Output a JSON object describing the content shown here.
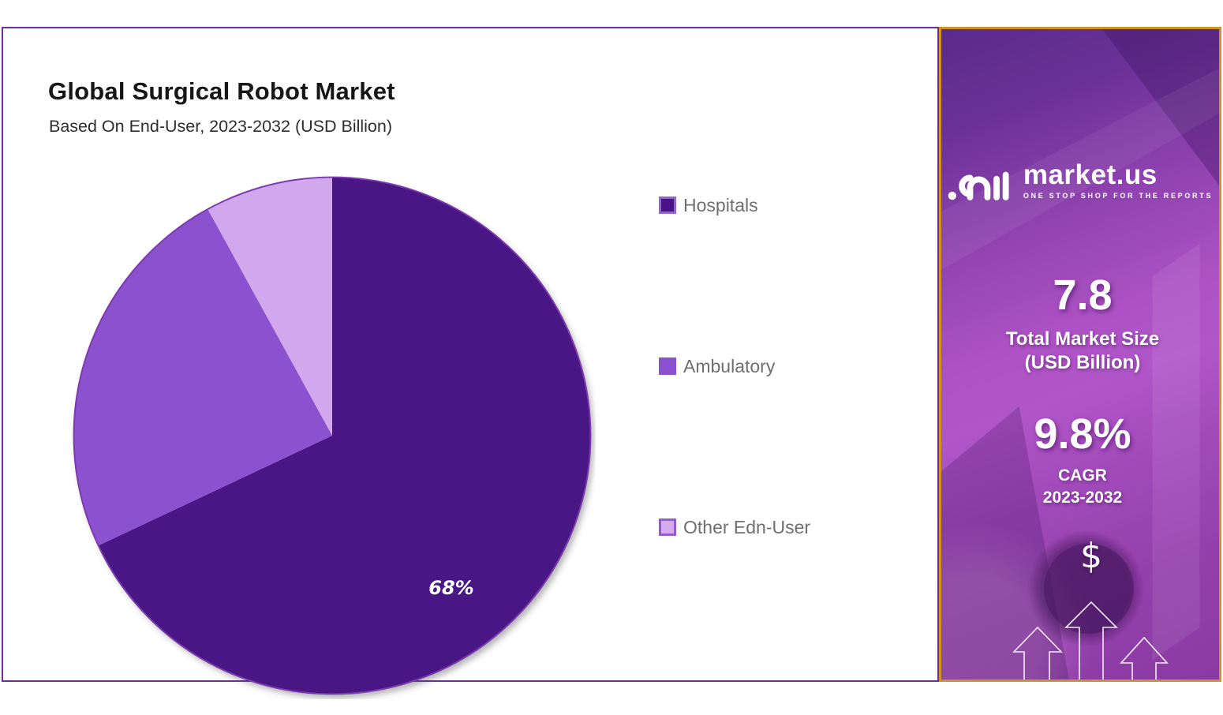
{
  "chart_panel": {
    "title": "Global Surgical Robot Market",
    "subtitle": "Based On End-User, 2023-2032 (USD Billion)",
    "border_color": "#6b2e9e"
  },
  "chart_data": {
    "type": "pie",
    "title": "Global Surgical Robot Market",
    "subtitle": "Based On End-User, 2023-2032 (USD Billion)",
    "unit": "percent",
    "start_angle_deg": 0,
    "direction": "clockwise",
    "legend_position": "right",
    "rim_color": "#7c3aad",
    "slices": [
      {
        "label": "Hospitals",
        "value": 68,
        "color": "#4a1386",
        "data_label": "68%"
      },
      {
        "label": "Ambulatory",
        "value": 24,
        "color": "#8b51ce",
        "data_label": ""
      },
      {
        "label": "Other Edn-User",
        "value": 8,
        "color": "#d1a7ee",
        "data_label": ""
      }
    ]
  },
  "legend": {
    "text_color": "#6f6f6f",
    "items": [
      {
        "label": "Hospitals",
        "fill": "#4a1386",
        "border": "#9066cc"
      },
      {
        "label": "Ambulatory",
        "fill": "#8b51ce",
        "border": "#8b51ce"
      },
      {
        "label": "Other Edn-User",
        "fill": "#d5abee",
        "border": "#965bd3"
      }
    ]
  },
  "side_panel": {
    "border_color": "#d0941e",
    "logo": {
      "name": "market.us",
      "tagline": "ONE STOP SHOP FOR THE REPORTS"
    },
    "stats": [
      {
        "value": "7.8",
        "label_line1": "Total Market Size",
        "label_line2": "(USD Billion)"
      },
      {
        "value": "9.8%",
        "label_line1": "CAGR",
        "label_line2": "2023-2032"
      }
    ],
    "dollar_symbol": "$"
  }
}
